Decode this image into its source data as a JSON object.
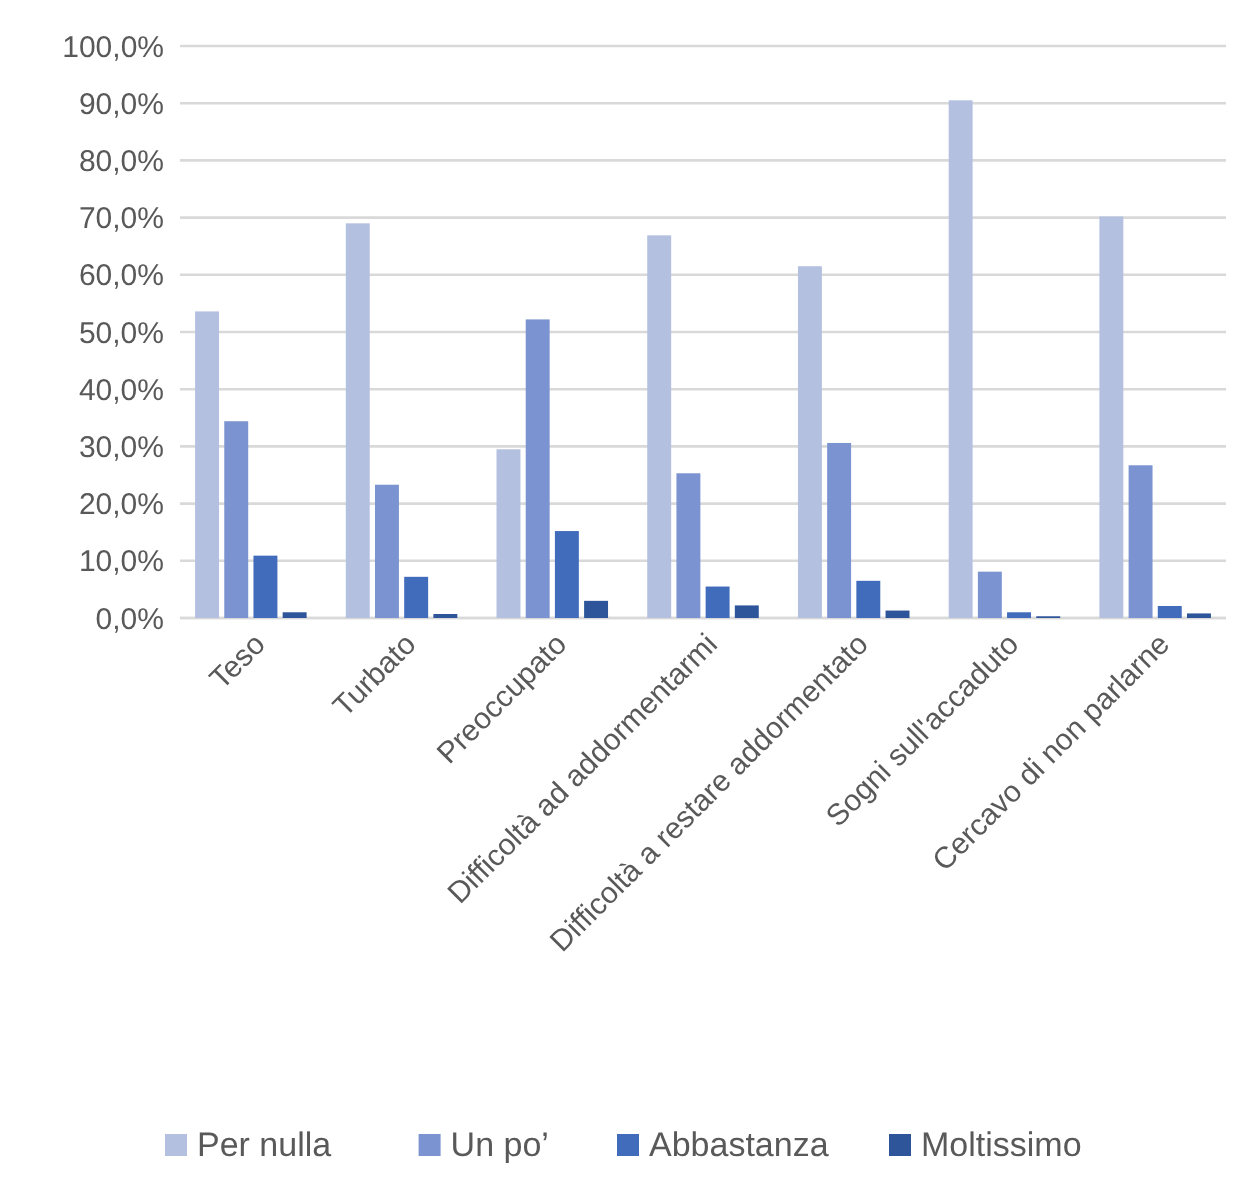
{
  "chart_data": {
    "type": "bar",
    "categories": [
      "Teso",
      "Turbato",
      "Preoccupato",
      "Difficoltà ad addormentarmi",
      "Difficoltà a restare addormentato",
      "Sogni sull'accaduto",
      "Cercavo di non parlarne"
    ],
    "series": [
      {
        "name": "Per nulla",
        "color": "#b4c0e0",
        "values": [
          53.6,
          69.0,
          29.5,
          66.9,
          61.5,
          90.5,
          70.2
        ]
      },
      {
        "name": "Un po’",
        "color": "#7b93d0",
        "values": [
          34.4,
          23.3,
          52.2,
          25.3,
          30.6,
          8.1,
          26.7
        ]
      },
      {
        "name": "Abbastanza",
        "color": "#416bbb",
        "values": [
          10.9,
          7.2,
          15.2,
          5.5,
          6.5,
          1.0,
          2.1
        ]
      },
      {
        "name": "Moltissimo",
        "color": "#2e559a",
        "values": [
          1.0,
          0.7,
          3.0,
          2.2,
          1.3,
          0.3,
          0.8
        ]
      }
    ],
    "ylim": [
      0,
      100
    ],
    "yticks": [
      {
        "value": 0,
        "label": "0,0%"
      },
      {
        "value": 10,
        "label": "10,0%"
      },
      {
        "value": 20,
        "label": "20,0%"
      },
      {
        "value": 30,
        "label": "30,0%"
      },
      {
        "value": 40,
        "label": "40,0%"
      },
      {
        "value": 50,
        "label": "50,0%"
      },
      {
        "value": 60,
        "label": "60,0%"
      },
      {
        "value": 70,
        "label": "70,0%"
      },
      {
        "value": 80,
        "label": "80,0%"
      },
      {
        "value": 90,
        "label": "90,0%"
      },
      {
        "value": 100,
        "label": "100,0%"
      }
    ],
    "grid": "y",
    "legend": "bottom"
  }
}
